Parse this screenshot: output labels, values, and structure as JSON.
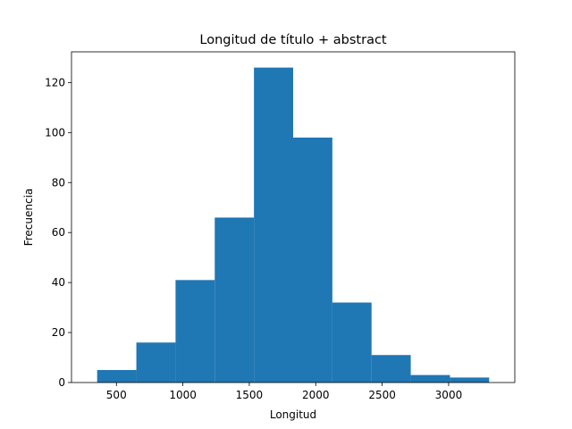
{
  "chart_data": {
    "type": "bar",
    "subtype": "histogram",
    "title": "Longitud de título + abstract",
    "xlabel": "Longitud",
    "ylabel": "Frecuencia",
    "color": "#1f77b4",
    "grid": false,
    "bin_edges": [
      355,
      650,
      945,
      1240,
      1535,
      1830,
      2125,
      2420,
      2715,
      3010,
      3305
    ],
    "counts": [
      5,
      16,
      41,
      66,
      126,
      98,
      32,
      11,
      3,
      2
    ],
    "xlim": [
      162,
      3498
    ],
    "ylim": [
      0,
      132.3
    ],
    "xticks": [
      500,
      1000,
      1500,
      2000,
      2500,
      3000
    ],
    "xtick_labels": [
      "500",
      "1000",
      "1500",
      "2000",
      "2500",
      "3000"
    ],
    "yticks": [
      0,
      20,
      40,
      60,
      80,
      100,
      120
    ],
    "ytick_labels": [
      "0",
      "20",
      "40",
      "60",
      "80",
      "100",
      "120"
    ]
  }
}
